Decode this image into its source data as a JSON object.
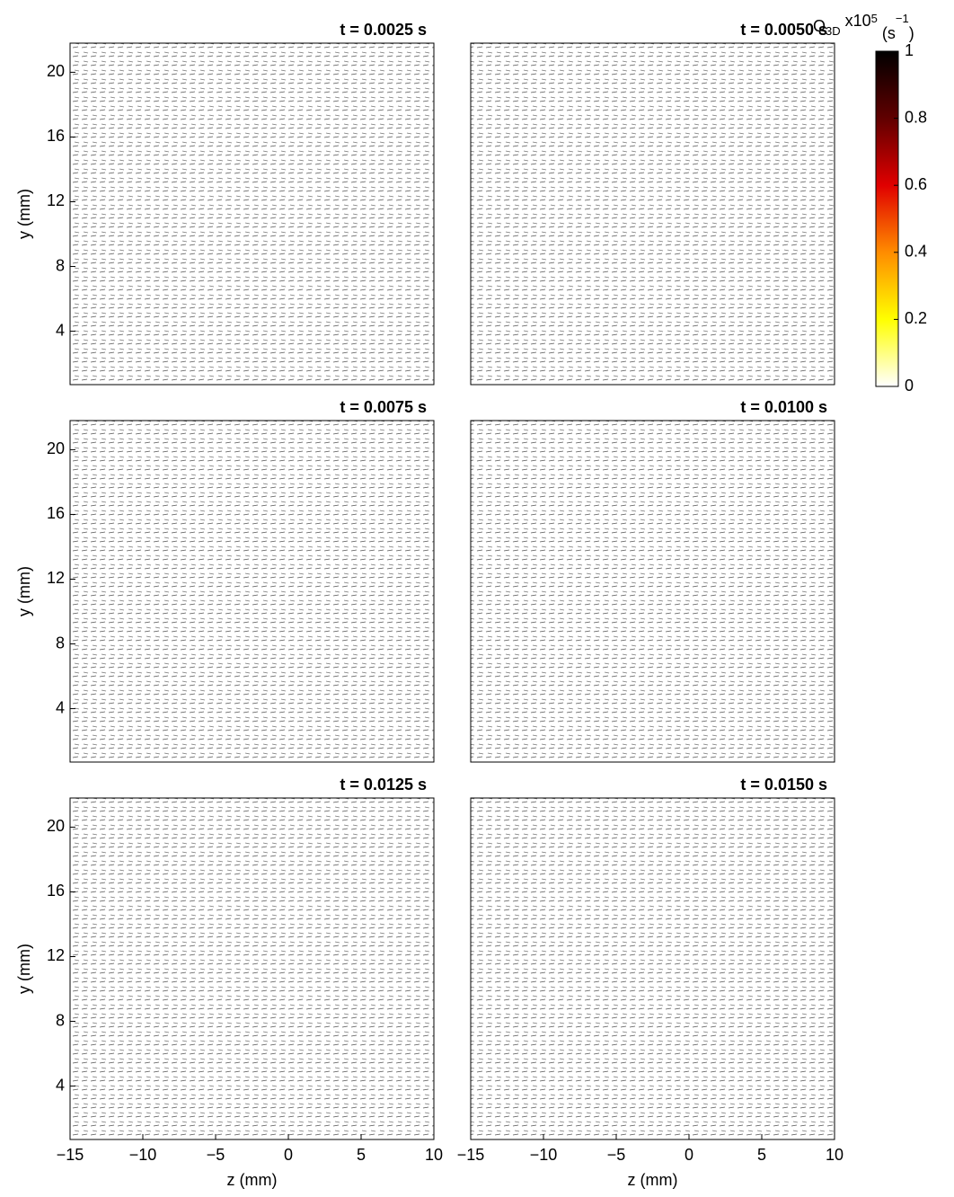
{
  "chart_data": [
    {
      "type": "quiver",
      "title": "t = 0.0025 s",
      "ylabel": "y (mm)",
      "xlim": [
        -15,
        10
      ],
      "ylim": [
        0.7,
        21.8
      ],
      "yticks": [
        4,
        8,
        12,
        16,
        20
      ]
    },
    {
      "type": "quiver",
      "title": "t = 0.0050 s",
      "xlim": [
        -15,
        10
      ],
      "ylim": [
        0.7,
        21.8
      ]
    },
    {
      "type": "quiver",
      "title": "t = 0.0075 s",
      "ylabel": "y (mm)",
      "xlim": [
        -15,
        10
      ],
      "ylim": [
        0.7,
        21.8
      ],
      "yticks": [
        4,
        8,
        12,
        16,
        20
      ]
    },
    {
      "type": "quiver",
      "title": "t = 0.0100 s",
      "xlim": [
        -15,
        10
      ],
      "ylim": [
        0.7,
        21.8
      ]
    },
    {
      "type": "quiver",
      "title": "t = 0.0125 s",
      "ylabel": "y (mm)",
      "xlabel": "z (mm)",
      "xlim": [
        -15,
        10
      ],
      "ylim": [
        0.7,
        21.8
      ],
      "yticks": [
        4,
        8,
        12,
        16,
        20
      ],
      "xticks": [
        {
          "value": -15,
          "label": "−15"
        },
        {
          "value": -10,
          "label": "−10"
        },
        {
          "value": -5,
          "label": "−5"
        },
        0,
        5,
        10
      ]
    },
    {
      "type": "quiver",
      "title": "t = 0.0150 s",
      "xlabel": "z (mm)",
      "xlim": [
        -15,
        10
      ],
      "ylim": [
        0.7,
        21.8
      ],
      "xticks": [
        {
          "value": -15,
          "label": "−15"
        },
        {
          "value": -10,
          "label": "−10"
        },
        {
          "value": -5,
          "label": "−5"
        },
        0,
        5,
        10
      ]
    },
    {
      "type": "colorbar",
      "label": [
        "Q",
        "3D",
        " x10",
        "5",
        " (s",
        "−1",
        ")"
      ],
      "ylim": [
        0,
        1
      ],
      "yticks": [
        0,
        0.2,
        0.4,
        0.6,
        0.8,
        1
      ],
      "colors": [
        "#ffffff",
        "#ffff00",
        "#ff8c00",
        "#e00000",
        "#600000",
        "#000000"
      ]
    }
  ]
}
